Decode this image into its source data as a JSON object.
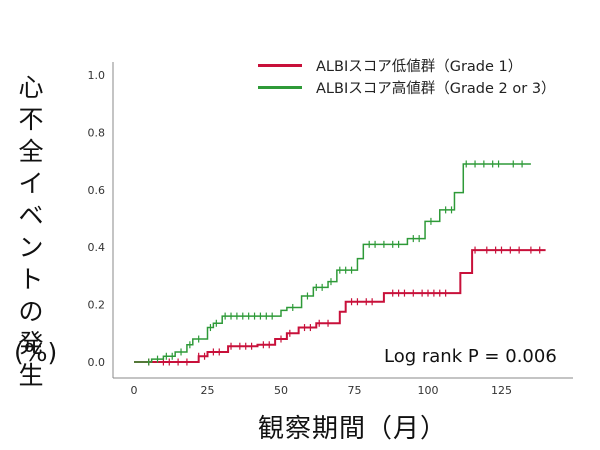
{
  "chart_data": {
    "type": "line",
    "subtype": "kaplan-meier-cumulative-incidence",
    "ylabel": "心不全イベントの発生",
    "ylabel_unit": "(%)",
    "xlabel": "観察期間（月）",
    "xlim": [
      -5,
      145
    ],
    "ylim": [
      0,
      1.0
    ],
    "x_ticks": [
      0,
      25,
      50,
      75,
      100,
      125
    ],
    "x_tick_labels": [
      "0",
      "25",
      "50",
      "75",
      "100",
      "125"
    ],
    "y_ticks": [
      0.0,
      0.2,
      0.4,
      0.6,
      0.8,
      1.0
    ],
    "y_tick_labels": [
      "0.0",
      "0.2",
      "0.4",
      "0.6",
      "0.8",
      "1.0"
    ],
    "grid": false,
    "legend_position": "top-right",
    "annotation": "Log rank P = 0.006",
    "series": [
      {
        "name": "ALBIスコア低値群（Grade 1）",
        "color": "#c8103a",
        "steps": [
          [
            0,
            0
          ],
          [
            20,
            0
          ],
          [
            22,
            0.02
          ],
          [
            25,
            0.035
          ],
          [
            32,
            0.055
          ],
          [
            42,
            0.06
          ],
          [
            48,
            0.08
          ],
          [
            52,
            0.1
          ],
          [
            56,
            0.12
          ],
          [
            62,
            0.135
          ],
          [
            70,
            0.175
          ],
          [
            72,
            0.21
          ],
          [
            85,
            0.24
          ],
          [
            111,
            0.31
          ],
          [
            115,
            0.39
          ],
          [
            140,
            0.39
          ]
        ],
        "censor_x": [
          5,
          10,
          12,
          15,
          18,
          22,
          24,
          27,
          29,
          33,
          36,
          38,
          40,
          44,
          46,
          50,
          53,
          58,
          60,
          63,
          66,
          74,
          76,
          79,
          81,
          88,
          90,
          92,
          95,
          98,
          100,
          102,
          104,
          106,
          116,
          120,
          123,
          125,
          128,
          131,
          135,
          138
        ]
      },
      {
        "name": "ALBIスコア高値群（Grade 2 or 3）",
        "color": "#2e9a38",
        "steps": [
          [
            0,
            0
          ],
          [
            6,
            0.01
          ],
          [
            10,
            0.02
          ],
          [
            14,
            0.035
          ],
          [
            18,
            0.06
          ],
          [
            20,
            0.08
          ],
          [
            25,
            0.12
          ],
          [
            27,
            0.135
          ],
          [
            30,
            0.16
          ],
          [
            50,
            0.18
          ],
          [
            52,
            0.19
          ],
          [
            57,
            0.23
          ],
          [
            61,
            0.26
          ],
          [
            66,
            0.28
          ],
          [
            69,
            0.32
          ],
          [
            76,
            0.36
          ],
          [
            78,
            0.41
          ],
          [
            93,
            0.43
          ],
          [
            99,
            0.49
          ],
          [
            104,
            0.53
          ],
          [
            109,
            0.59
          ],
          [
            112,
            0.69
          ],
          [
            135,
            0.69
          ]
        ],
        "censor_x": [
          5,
          8,
          11,
          13,
          16,
          19,
          22,
          26,
          28,
          31,
          33,
          35,
          37,
          39,
          41,
          43,
          45,
          47,
          54,
          59,
          62,
          64,
          67,
          70,
          72,
          74,
          80,
          82,
          85,
          88,
          90,
          95,
          97,
          101,
          106,
          108,
          113,
          116,
          119,
          122,
          124,
          129,
          132
        ]
      }
    ]
  }
}
